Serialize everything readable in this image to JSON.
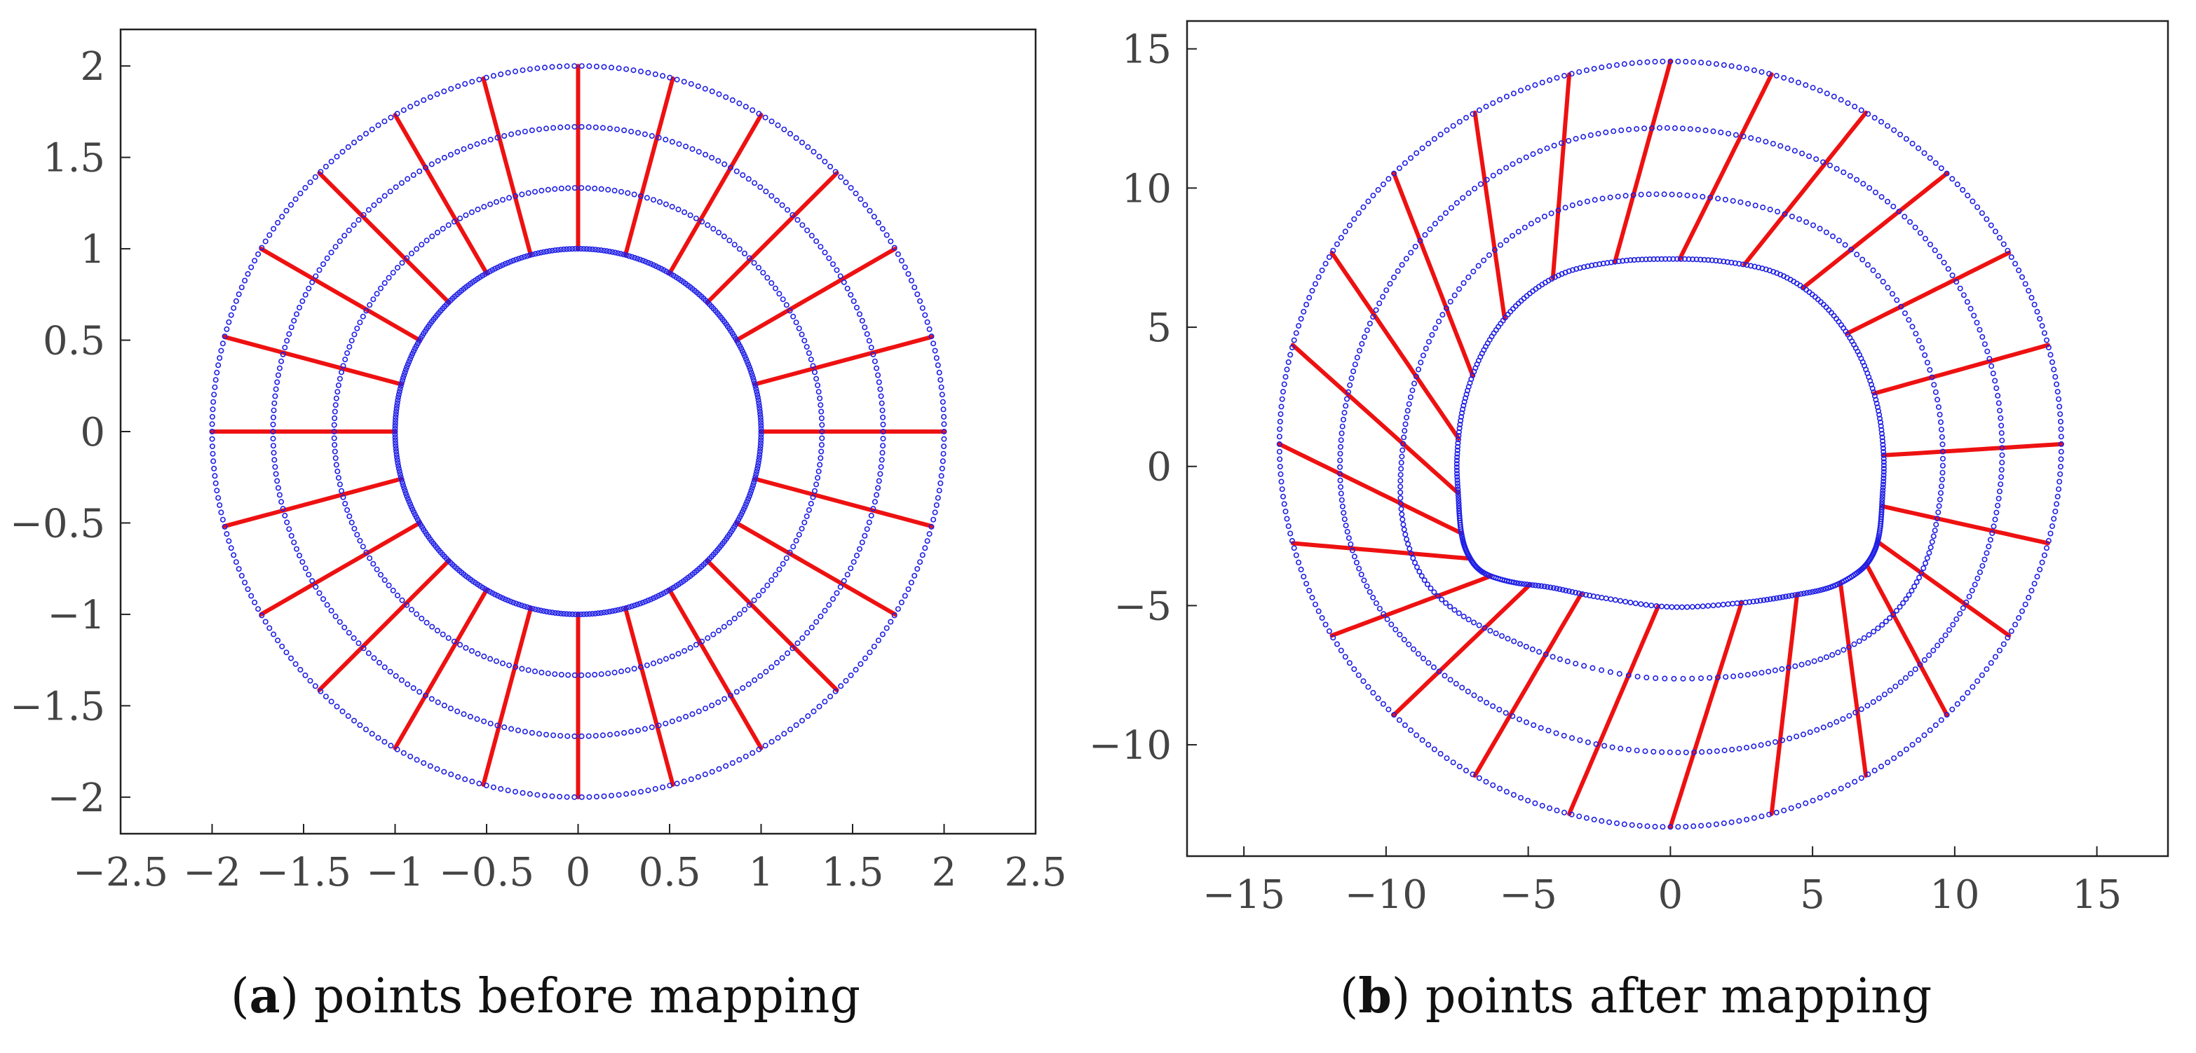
{
  "figure": {
    "panels": [
      {
        "caption_open": "(",
        "caption_letter": "a",
        "caption_rest": ") points before mapping"
      },
      {
        "caption_open": "(",
        "caption_letter": "b",
        "caption_rest": ") points after mapping"
      }
    ]
  },
  "colors": {
    "ring_points": "#1f1fe6",
    "radial_lines": "#ee1111",
    "axis": "#222222",
    "tick_text": "#444444"
  },
  "chart_data": [
    {
      "type": "scatter",
      "title": "",
      "xlabel": "",
      "ylabel": "",
      "xlim": [
        -2.5,
        2.5
      ],
      "ylim": [
        -2.2,
        2.2
      ],
      "grid": false,
      "xticks": [
        -2.5,
        -2,
        -1.5,
        -1,
        -0.5,
        0,
        0.5,
        1,
        1.5,
        2,
        2.5
      ],
      "xtick_labels": [
        "−2.5",
        "−2",
        "−1.5",
        "−1",
        "−0.5",
        "0",
        "0.5",
        "1",
        "1.5",
        "2",
        "2.5"
      ],
      "yticks": [
        2,
        1.5,
        1,
        0.5,
        0,
        -0.5,
        -1,
        -1.5,
        -2
      ],
      "ytick_labels": [
        "2",
        "1.5",
        "1",
        "0.5",
        "0",
        "−0.5",
        "−1",
        "−1.5",
        "−2"
      ],
      "rings": [
        {
          "shape": "circle",
          "radius": 1.0,
          "marker_count": 400
        },
        {
          "shape": "circle",
          "radius": 1.333,
          "marker_count": 230
        },
        {
          "shape": "circle",
          "radius": 1.667,
          "marker_count": 270
        },
        {
          "shape": "circle",
          "radius": 2.0,
          "marker_count": 310
        }
      ],
      "radial_lines": {
        "count": 24,
        "start_angle_deg": 0,
        "inner_radius": 1.0,
        "outer_radius": 2.0
      }
    },
    {
      "type": "scatter",
      "title": "",
      "xlabel": "",
      "ylabel": "",
      "xlim": [
        -17,
        17.5
      ],
      "ylim": [
        -14,
        16
      ],
      "grid": false,
      "xticks": [
        -15,
        -10,
        -5,
        0,
        5,
        10,
        15
      ],
      "xtick_labels": [
        "−15",
        "−10",
        "−5",
        "0",
        "5",
        "10",
        "15"
      ],
      "yticks": [
        15,
        10,
        5,
        0,
        -5,
        -10
      ],
      "ytick_labels": [
        "15",
        "10",
        "5",
        "0",
        "−5",
        "−10"
      ],
      "rings": [
        {
          "shape": "tunnel",
          "level": 0.0,
          "marker_count": 400
        },
        {
          "shape": "blend",
          "level": 0.333,
          "marker_count": 240
        },
        {
          "shape": "blend",
          "level": 0.667,
          "marker_count": 280
        },
        {
          "shape": "blend",
          "level": 1.0,
          "marker_count": 320
        }
      ],
      "tunnel_outline": {
        "vertices": [
          [
            7.5,
            0.4
          ],
          [
            7.25,
            2.3
          ],
          [
            6.55,
            4.2
          ],
          [
            5.4,
            5.8
          ],
          [
            3.85,
            6.9
          ],
          [
            1.95,
            7.35
          ],
          [
            0,
            7.45
          ],
          [
            -1.95,
            7.35
          ],
          [
            -3.85,
            6.9
          ],
          [
            -5.4,
            5.8
          ],
          [
            -6.55,
            4.2
          ],
          [
            -7.25,
            2.3
          ],
          [
            -7.5,
            0.4
          ],
          [
            -7.45,
            -1.2
          ],
          [
            -7.35,
            -2.4
          ],
          [
            -7.1,
            -3.2
          ],
          [
            -6.6,
            -3.8
          ],
          [
            -5.6,
            -4.15
          ],
          [
            -4.2,
            -4.35
          ],
          [
            -2.5,
            -4.7
          ],
          [
            0,
            -5.05
          ],
          [
            2.5,
            -4.9
          ],
          [
            4.2,
            -4.65
          ],
          [
            5.6,
            -4.35
          ],
          [
            6.6,
            -3.8
          ],
          [
            7.1,
            -3.2
          ],
          [
            7.35,
            -2.4
          ],
          [
            7.45,
            -1.2
          ]
        ]
      },
      "outer_circle": {
        "center": [
          0,
          0.8
        ],
        "radius": 13.75
      },
      "radial_lines": {
        "count": 24,
        "start_angle_deg": 0
      }
    }
  ]
}
